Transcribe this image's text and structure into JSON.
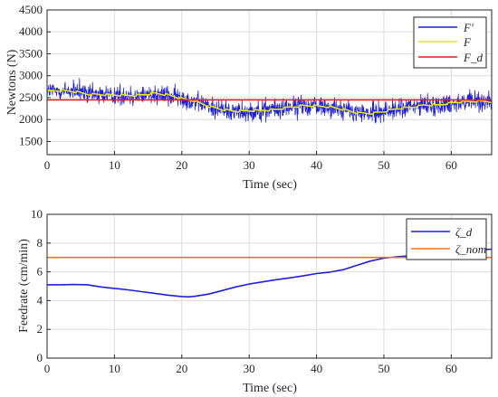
{
  "chart_data": [
    {
      "type": "line",
      "xlabel": "Time (sec)",
      "ylabel": "Newtons (N)",
      "xlim": [
        0,
        66
      ],
      "ylim": [
        1200,
        4500
      ],
      "x_ticks": [
        "0",
        "10",
        "20",
        "30",
        "40",
        "50",
        "60"
      ],
      "y_ticks": [
        "1500",
        "2000",
        "2500",
        "3000",
        "3500",
        "4000",
        "4500"
      ],
      "grid": true,
      "legend_position": "top-right",
      "legend": [
        "F'",
        "F",
        "F_d"
      ],
      "series": [
        {
          "name": "F'",
          "color": "#1f1fdc",
          "note_style": "high-noise measured force around F",
          "noise_amplitude": 330,
          "x": [
            0,
            2,
            4,
            6,
            8,
            10,
            12,
            14,
            16,
            18,
            20,
            22,
            24,
            26,
            28,
            30,
            32,
            34,
            36,
            38,
            40,
            42,
            44,
            46,
            48,
            50,
            52,
            54,
            56,
            58,
            60,
            62,
            64,
            66
          ],
          "y": [
            2650,
            2660,
            2640,
            2580,
            2570,
            2560,
            2550,
            2560,
            2600,
            2560,
            2480,
            2420,
            2300,
            2230,
            2190,
            2200,
            2210,
            2230,
            2280,
            2320,
            2310,
            2290,
            2230,
            2150,
            2140,
            2180,
            2250,
            2280,
            2330,
            2330,
            2380,
            2410,
            2420,
            2410
          ]
        },
        {
          "name": "F",
          "color": "#e6e619",
          "x": [
            0,
            2,
            4,
            6,
            8,
            10,
            12,
            14,
            16,
            18,
            20,
            22,
            24,
            26,
            28,
            30,
            32,
            34,
            36,
            38,
            40,
            42,
            44,
            46,
            48,
            50,
            52,
            54,
            56,
            58,
            60,
            62,
            64,
            66
          ],
          "y": [
            2650,
            2660,
            2640,
            2580,
            2570,
            2560,
            2550,
            2560,
            2600,
            2560,
            2480,
            2420,
            2300,
            2230,
            2190,
            2200,
            2210,
            2230,
            2280,
            2320,
            2310,
            2290,
            2230,
            2150,
            2140,
            2180,
            2250,
            2280,
            2330,
            2330,
            2380,
            2410,
            2420,
            2410
          ]
        },
        {
          "name": "F_d",
          "color": "#e61919",
          "x": [
            0,
            66
          ],
          "y": [
            2450,
            2450
          ]
        }
      ]
    },
    {
      "type": "line",
      "xlabel": "Time (sec)",
      "ylabel": "Feedrate (cm/min)",
      "xlim": [
        0,
        66
      ],
      "ylim": [
        0,
        10
      ],
      "x_ticks": [
        "0",
        "10",
        "20",
        "30",
        "40",
        "50",
        "60"
      ],
      "y_ticks": [
        "0",
        "2",
        "4",
        "6",
        "8",
        "10"
      ],
      "grid": true,
      "legend_position": "top-right",
      "legend": [
        "ζ_d",
        "ζ_nom"
      ],
      "series": [
        {
          "name": "ζ_d",
          "color": "#1f1fdc",
          "x": [
            0,
            2,
            4,
            6,
            8,
            10,
            12,
            14,
            16,
            18,
            20,
            21,
            22,
            24,
            26,
            28,
            30,
            32,
            34,
            36,
            38,
            40,
            42,
            44,
            46,
            48,
            50,
            52,
            54,
            56,
            58,
            60,
            62,
            64,
            66
          ],
          "y": [
            5.1,
            5.1,
            5.12,
            5.1,
            4.95,
            4.85,
            4.75,
            4.62,
            4.5,
            4.38,
            4.28,
            4.26,
            4.3,
            4.45,
            4.7,
            4.95,
            5.15,
            5.3,
            5.45,
            5.58,
            5.72,
            5.88,
            5.98,
            6.15,
            6.45,
            6.75,
            6.95,
            7.05,
            7.12,
            7.18,
            7.28,
            7.38,
            7.45,
            7.52,
            7.58
          ]
        },
        {
          "name": "ζ_nom",
          "color": "#f07020",
          "x": [
            0,
            66
          ],
          "y": [
            7.0,
            7.0
          ]
        }
      ]
    }
  ]
}
